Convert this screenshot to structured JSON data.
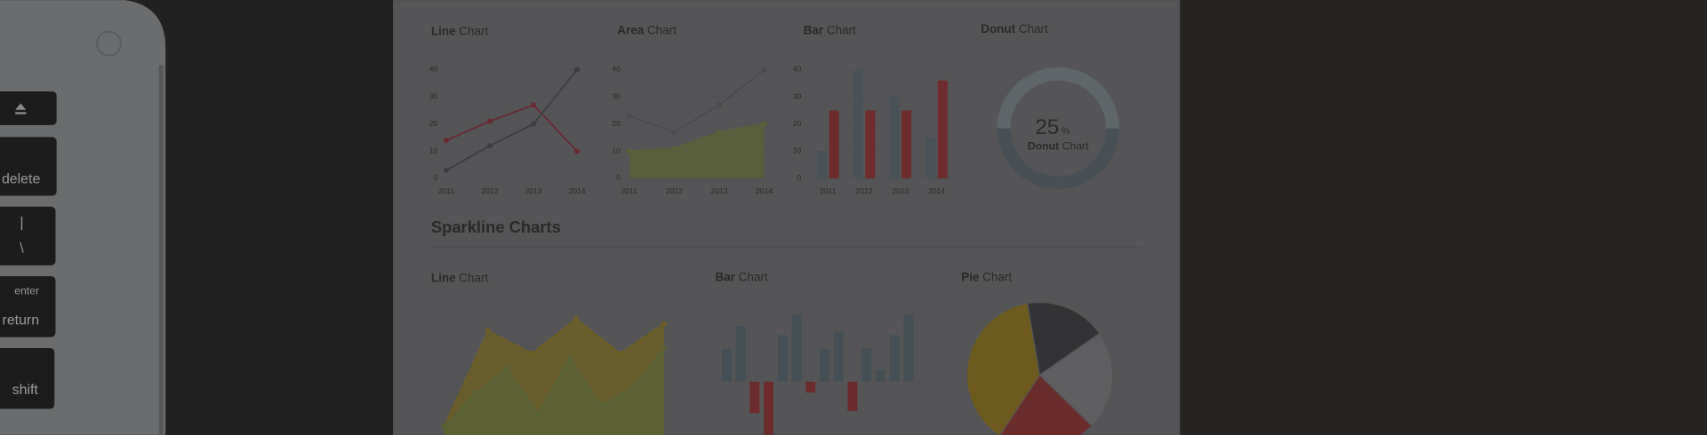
{
  "keyboard": {
    "keys": [
      "delete",
      "|",
      "\\",
      "enter",
      "return",
      "shift"
    ]
  },
  "heading": "Sparkline Charts",
  "chart_data": [
    {
      "type": "line",
      "title": [
        "Line",
        "Chart"
      ],
      "categories": [
        "2011",
        "2012",
        "2013",
        "2014"
      ],
      "ylim": [
        0,
        40
      ],
      "yticks": [
        0,
        10,
        20,
        30,
        40
      ],
      "grid": true,
      "series": [
        {
          "color": "#6a2a33",
          "values": [
            14,
            21,
            27,
            10
          ]
        },
        {
          "color": "#3c3f41",
          "values": [
            3,
            12,
            20,
            40
          ]
        }
      ]
    },
    {
      "type": "line",
      "title": [
        "Area",
        "Chart"
      ],
      "categories": [
        "2011",
        "2012",
        "2013",
        "2014"
      ],
      "ylim": [
        0,
        40
      ],
      "yticks": [
        0,
        10,
        20,
        30,
        40
      ],
      "grid": true,
      "series": [
        {
          "color": "#4a4c4e",
          "values": [
            23,
            17,
            27,
            40
          ]
        },
        {
          "color": "#5b6038",
          "area": true,
          "values": [
            10,
            11,
            17,
            20
          ]
        }
      ]
    },
    {
      "type": "bar",
      "title": [
        "Bar",
        "Chart"
      ],
      "categories": [
        "2011",
        "2012",
        "2013",
        "2014"
      ],
      "ylim": [
        0,
        40
      ],
      "yticks": [
        0,
        10,
        20,
        30,
        40
      ],
      "grid": true,
      "series": [
        {
          "color": "#485257",
          "values": [
            10,
            40,
            30,
            15
          ]
        },
        {
          "color": "#6e2c2c",
          "values": [
            25,
            25,
            25,
            36
          ]
        }
      ]
    },
    {
      "type": "donut",
      "title": [
        "Donut",
        "Chart"
      ],
      "value": 25,
      "unit": "%",
      "colors": [
        "#485055",
        "#5f666a"
      ]
    },
    {
      "type": "area",
      "title": [
        "Line",
        "Chart"
      ],
      "ylim": [
        0,
        100
      ],
      "series": [
        {
          "color": "#6c5e25",
          "values": [
            7,
            87,
            68,
            97,
            68,
            93
          ]
        },
        {
          "color": "#5a6036",
          "values": [
            7,
            35,
            56,
            18,
            65,
            25,
            40,
            73
          ]
        }
      ]
    },
    {
      "type": "bar",
      "title": [
        "Bar",
        "Chart"
      ],
      "ylim": [
        -60,
        60
      ],
      "colors": [
        "#445055",
        "#6b2b2b"
      ],
      "values": [
        30,
        51,
        -29,
        -49,
        43,
        62,
        -10,
        30,
        46,
        -27,
        31,
        11,
        43,
        62
      ]
    },
    {
      "type": "pie",
      "title": [
        "Pie",
        "Chart"
      ],
      "values": [
        18,
        22,
        22,
        38
      ],
      "colors": [
        "#333335",
        "#5e5e60",
        "#6b2c2c",
        "#6c5a1f"
      ]
    }
  ]
}
